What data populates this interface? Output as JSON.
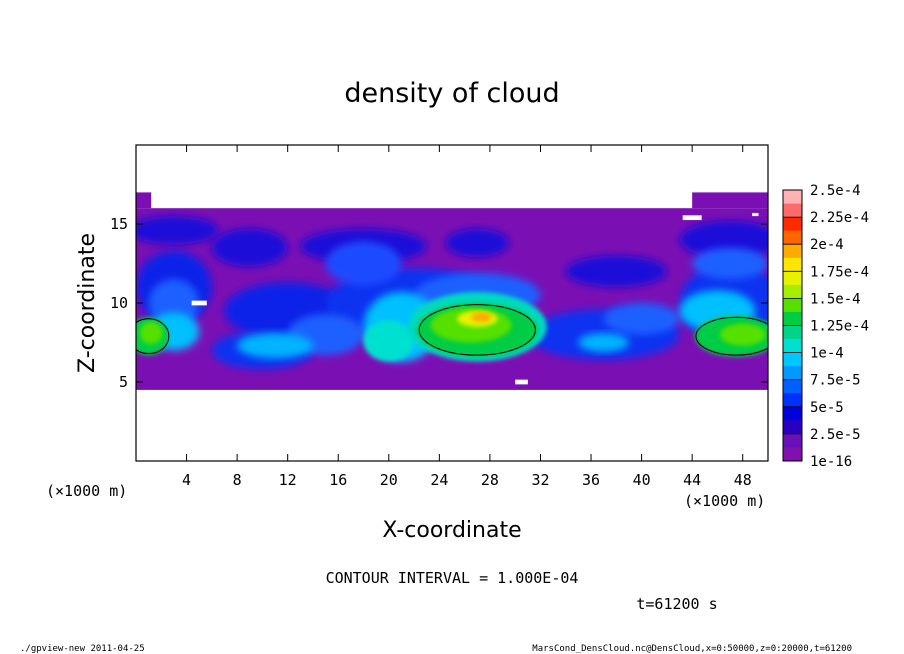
{
  "chart_data": {
    "type": "heatmap",
    "title": "density of cloud",
    "xlabel": "X-coordinate",
    "ylabel": "Z-coordinate",
    "x_unit": "(×1000 m)",
    "x_unit_right": "(×1000 m)",
    "z_unit": "(×1000 m)",
    "xlim": [
      0,
      50
    ],
    "ylim": [
      0,
      20
    ],
    "xticks": [
      4,
      8,
      12,
      16,
      20,
      24,
      28,
      32,
      36,
      40,
      44,
      48
    ],
    "yticks": [
      5,
      10,
      15
    ],
    "colorbar": {
      "labels": [
        "2.5e-4",
        "2.25e-4",
        "2e-4",
        "1.75e-4",
        "1.5e-4",
        "1.25e-4",
        "1e-4",
        "7.5e-5",
        "5e-5",
        "2.5e-5",
        "1e-16"
      ],
      "colors": [
        "#ffb3b3",
        "#ff6a6a",
        "#ff2a00",
        "#ff6600",
        "#ffaa00",
        "#ffe600",
        "#e6f200",
        "#a6ee00",
        "#55e000",
        "#00cc44",
        "#00d48a",
        "#00e0d0",
        "#00c8ff",
        "#0099ff",
        "#0060ff",
        "#0030ff",
        "#0000dd",
        "#2a00c0",
        "#6a10b8",
        "#8010b0"
      ]
    },
    "contour_interval": "CONTOUR INTERVAL = 1.000E-04",
    "time_label": "t=61200 s",
    "cloud_layer_z": [
      4.5,
      17
    ],
    "peaks": [
      {
        "x": 27,
        "z": 8.5,
        "value": 0.000175
      },
      {
        "x": 1,
        "z": 8,
        "value": 0.000125
      },
      {
        "x": 48,
        "z": 8,
        "value": 0.000125
      }
    ]
  },
  "footer": {
    "left": "./gpview-new  2011-04-25",
    "right": "MarsCond_DensCloud.nc@DensCloud,x=0:50000,z=0:20000,t=61200"
  }
}
